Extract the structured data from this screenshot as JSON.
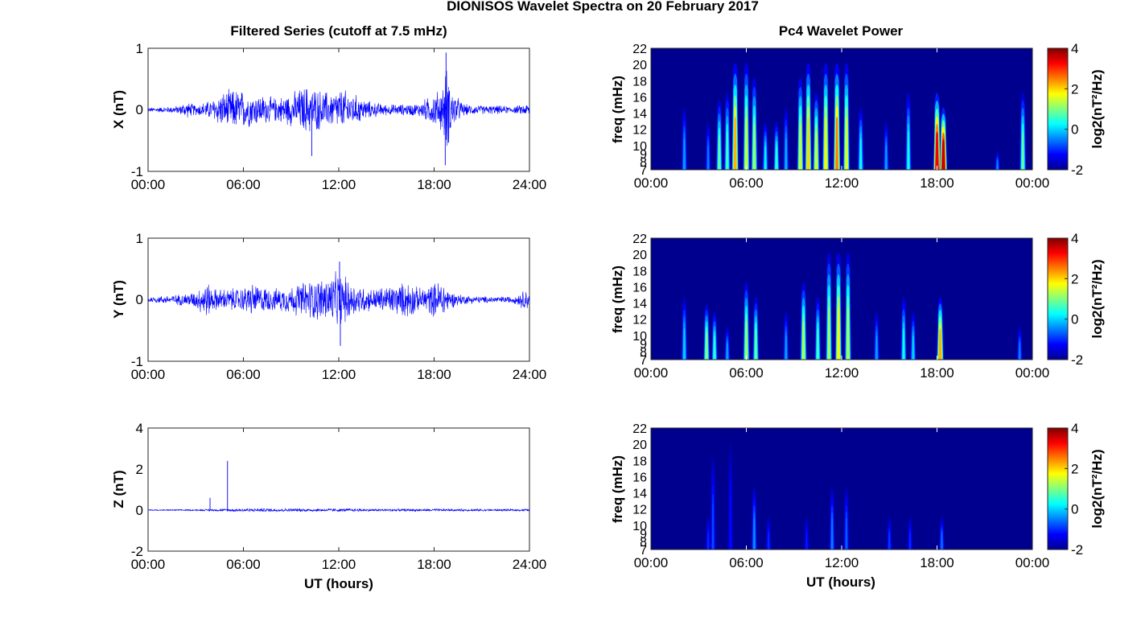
{
  "figure": {
    "title": "DIONISOS Wavelet Spectra on 20 February 2017",
    "left_title": "Filtered Series (cutoff at 7.5 mHz)",
    "right_title": "Pc4 Wavelet Power",
    "time_ticks_left": [
      "00:00",
      "06:00",
      "12:00",
      "18:00",
      "24:00"
    ],
    "time_ticks_right": [
      "00:00",
      "06:00",
      "12:00",
      "18:00",
      "00:00"
    ],
    "xlabel": "UT (hours)",
    "colors": {
      "trace": "#0000ff",
      "spectrum_background": "#00008f"
    }
  },
  "chart_data": [
    {
      "type": "line",
      "panel": "X",
      "ylabel": "X (nT)",
      "ylim": [
        -1,
        1
      ],
      "yticks": [
        "-1",
        "0",
        "1"
      ],
      "xlim": [
        0,
        24
      ],
      "x_unit": "hours UT",
      "envelope_hours": [
        0,
        1,
        2,
        2.3,
        3,
        4,
        4.5,
        5,
        5.5,
        6,
        6.5,
        7,
        8,
        9,
        9.5,
        10,
        10.5,
        11,
        11.5,
        12,
        12.5,
        13,
        14,
        15,
        16,
        17,
        18,
        18.5,
        18.8,
        19,
        19.3,
        19.7,
        20,
        21,
        22,
        23,
        24
      ],
      "envelope_nT": [
        0.04,
        0.05,
        0.08,
        0.15,
        0.1,
        0.18,
        0.3,
        0.35,
        0.38,
        0.35,
        0.3,
        0.28,
        0.22,
        0.3,
        0.38,
        0.45,
        0.4,
        0.35,
        0.32,
        0.38,
        0.35,
        0.28,
        0.15,
        0.1,
        0.1,
        0.12,
        0.3,
        0.4,
        0.8,
        0.5,
        0.3,
        0.15,
        0.1,
        0.08,
        0.08,
        0.06,
        0.12
      ],
      "spikes": [
        {
          "hour": 18.75,
          "value": 0.93
        },
        {
          "hour": 18.7,
          "value": -0.9
        },
        {
          "hour": 10.3,
          "value": -0.75
        }
      ]
    },
    {
      "type": "line",
      "panel": "Y",
      "ylabel": "Y (nT)",
      "ylim": [
        -1,
        1
      ],
      "yticks": [
        "-1",
        "0",
        "1"
      ],
      "xlim": [
        0,
        24
      ],
      "x_unit": "hours UT",
      "envelope_hours": [
        0,
        1,
        2,
        3,
        3.7,
        4,
        5,
        6,
        6.5,
        7,
        8,
        9,
        10,
        11,
        11.5,
        12,
        12.5,
        13,
        14,
        15,
        16,
        16.5,
        17,
        18,
        18.5,
        19,
        20,
        21,
        22,
        23,
        23.8,
        24
      ],
      "envelope_nT": [
        0.05,
        0.07,
        0.1,
        0.15,
        0.35,
        0.2,
        0.2,
        0.22,
        0.3,
        0.25,
        0.2,
        0.25,
        0.35,
        0.4,
        0.45,
        0.5,
        0.4,
        0.3,
        0.2,
        0.25,
        0.3,
        0.35,
        0.2,
        0.3,
        0.38,
        0.15,
        0.08,
        0.06,
        0.06,
        0.06,
        0.2,
        0.1
      ],
      "spikes": [
        {
          "hour": 12.05,
          "value": 0.62
        },
        {
          "hour": 12.1,
          "value": -0.75
        }
      ]
    },
    {
      "type": "line",
      "panel": "Z",
      "ylabel": "Z (nT)",
      "ylim": [
        -2,
        4
      ],
      "yticks": [
        "-2",
        "0",
        "2",
        "4"
      ],
      "xlim": [
        0,
        24
      ],
      "x_unit": "hours UT",
      "envelope_hours": [
        0,
        3,
        5,
        6,
        9,
        12,
        15,
        18,
        21,
        24
      ],
      "envelope_nT": [
        0.03,
        0.04,
        0.08,
        0.1,
        0.09,
        0.09,
        0.07,
        0.07,
        0.06,
        0.06
      ],
      "spikes": [
        {
          "hour": 5.0,
          "value": 2.4
        },
        {
          "hour": 3.9,
          "value": 0.6
        }
      ]
    },
    {
      "type": "heatmap",
      "panel": "X",
      "ylabel": "freq (mHz)",
      "freq_ticks": [
        "7",
        "8",
        "9",
        "10",
        "12",
        "14",
        "16",
        "18",
        "20",
        "22"
      ],
      "freq_range_mHz": [
        7,
        22
      ],
      "xlim": [
        0,
        24
      ],
      "colorbar": {
        "label": "log2(nT²/Hz)",
        "range": [
          -2,
          4
        ],
        "ticks": [
          "-2",
          "0",
          "2",
          "4"
        ]
      },
      "bursts": [
        {
          "hour": 2.1,
          "fmax": 16,
          "peak": -0.3
        },
        {
          "hour": 3.6,
          "fmax": 14,
          "peak": -0.5
        },
        {
          "hour": 4.3,
          "fmax": 17,
          "peak": 0.8
        },
        {
          "hour": 4.8,
          "fmax": 18,
          "peak": 0.6
        },
        {
          "hour": 5.3,
          "fmax": 22,
          "peak": 2.2
        },
        {
          "hour": 6.0,
          "fmax": 22,
          "peak": 1.5
        },
        {
          "hour": 6.5,
          "fmax": 20,
          "peak": 1.2
        },
        {
          "hour": 7.2,
          "fmax": 14,
          "peak": 0.2
        },
        {
          "hour": 7.9,
          "fmax": 14,
          "peak": 0.5
        },
        {
          "hour": 8.5,
          "fmax": 16,
          "peak": -0.2
        },
        {
          "hour": 9.4,
          "fmax": 20,
          "peak": 1.5
        },
        {
          "hour": 9.9,
          "fmax": 22,
          "peak": 2.0
        },
        {
          "hour": 10.4,
          "fmax": 18,
          "peak": 1.5
        },
        {
          "hour": 11.0,
          "fmax": 22,
          "peak": 1.8
        },
        {
          "hour": 11.7,
          "fmax": 22,
          "peak": 2.5
        },
        {
          "hour": 12.3,
          "fmax": 22,
          "peak": 1.6
        },
        {
          "hour": 13.2,
          "fmax": 16,
          "peak": 0.3
        },
        {
          "hour": 14.8,
          "fmax": 14,
          "peak": -0.3
        },
        {
          "hour": 16.2,
          "fmax": 18,
          "peak": 0.3
        },
        {
          "hour": 18.0,
          "fmax": 18,
          "peak": 3.3
        },
        {
          "hour": 18.4,
          "fmax": 16,
          "peak": 3.6
        },
        {
          "hour": 21.8,
          "fmax": 10,
          "peak": -0.5
        },
        {
          "hour": 23.4,
          "fmax": 18,
          "peak": 0.8
        }
      ]
    },
    {
      "type": "heatmap",
      "panel": "Y",
      "ylabel": "freq (mHz)",
      "freq_ticks": [
        "7",
        "8",
        "9",
        "10",
        "12",
        "14",
        "16",
        "18",
        "20",
        "22"
      ],
      "freq_range_mHz": [
        7,
        22
      ],
      "xlim": [
        0,
        24
      ],
      "colorbar": {
        "label": "log2(nT²/Hz)",
        "range": [
          -2,
          4
        ],
        "ticks": [
          "-2",
          "0",
          "2",
          "4"
        ]
      },
      "bursts": [
        {
          "hour": 2.1,
          "fmax": 16,
          "peak": 0.0
        },
        {
          "hour": 3.5,
          "fmax": 15,
          "peak": 1.0
        },
        {
          "hour": 4.0,
          "fmax": 14,
          "peak": 0.5
        },
        {
          "hour": 4.8,
          "fmax": 12,
          "peak": -0.3
        },
        {
          "hour": 6.0,
          "fmax": 18,
          "peak": 1.2
        },
        {
          "hour": 6.6,
          "fmax": 16,
          "peak": 0.8
        },
        {
          "hour": 8.5,
          "fmax": 14,
          "peak": -0.3
        },
        {
          "hour": 9.6,
          "fmax": 18,
          "peak": 1.3
        },
        {
          "hour": 10.5,
          "fmax": 16,
          "peak": 0.6
        },
        {
          "hour": 11.2,
          "fmax": 22,
          "peak": 1.2
        },
        {
          "hour": 11.8,
          "fmax": 22,
          "peak": 1.8
        },
        {
          "hour": 12.4,
          "fmax": 22,
          "peak": 1.3
        },
        {
          "hour": 14.2,
          "fmax": 14,
          "peak": -0.3
        },
        {
          "hour": 15.9,
          "fmax": 16,
          "peak": 0.3
        },
        {
          "hour": 16.5,
          "fmax": 14,
          "peak": 0.0
        },
        {
          "hour": 18.2,
          "fmax": 16,
          "peak": 2.2
        },
        {
          "hour": 23.2,
          "fmax": 12,
          "peak": -0.5
        }
      ]
    },
    {
      "type": "heatmap",
      "panel": "Z",
      "ylabel": "freq (mHz)",
      "freq_ticks": [
        "7",
        "8",
        "9",
        "10",
        "12",
        "14",
        "16",
        "18",
        "20",
        "22"
      ],
      "freq_range_mHz": [
        7,
        22
      ],
      "xlim": [
        0,
        24
      ],
      "colorbar": {
        "label": "log2(nT²/Hz)",
        "range": [
          -2,
          4
        ],
        "ticks": [
          "-2",
          "0",
          "2",
          "4"
        ]
      },
      "bursts": [
        {
          "hour": 3.6,
          "fmax": 12,
          "peak": -1.0
        },
        {
          "hour": 3.9,
          "fmax": 20,
          "peak": -0.8
        },
        {
          "hour": 5.0,
          "fmax": 22,
          "peak": -1.2
        },
        {
          "hour": 6.5,
          "fmax": 16,
          "peak": -0.4
        },
        {
          "hour": 7.4,
          "fmax": 12,
          "peak": -1.0
        },
        {
          "hour": 9.8,
          "fmax": 12,
          "peak": -1.1
        },
        {
          "hour": 11.4,
          "fmax": 16,
          "peak": -0.5
        },
        {
          "hour": 12.3,
          "fmax": 16,
          "peak": -0.7
        },
        {
          "hour": 15.0,
          "fmax": 12,
          "peak": -0.9
        },
        {
          "hour": 16.3,
          "fmax": 12,
          "peak": -1.0
        },
        {
          "hour": 18.3,
          "fmax": 12,
          "peak": -0.6
        }
      ]
    }
  ]
}
